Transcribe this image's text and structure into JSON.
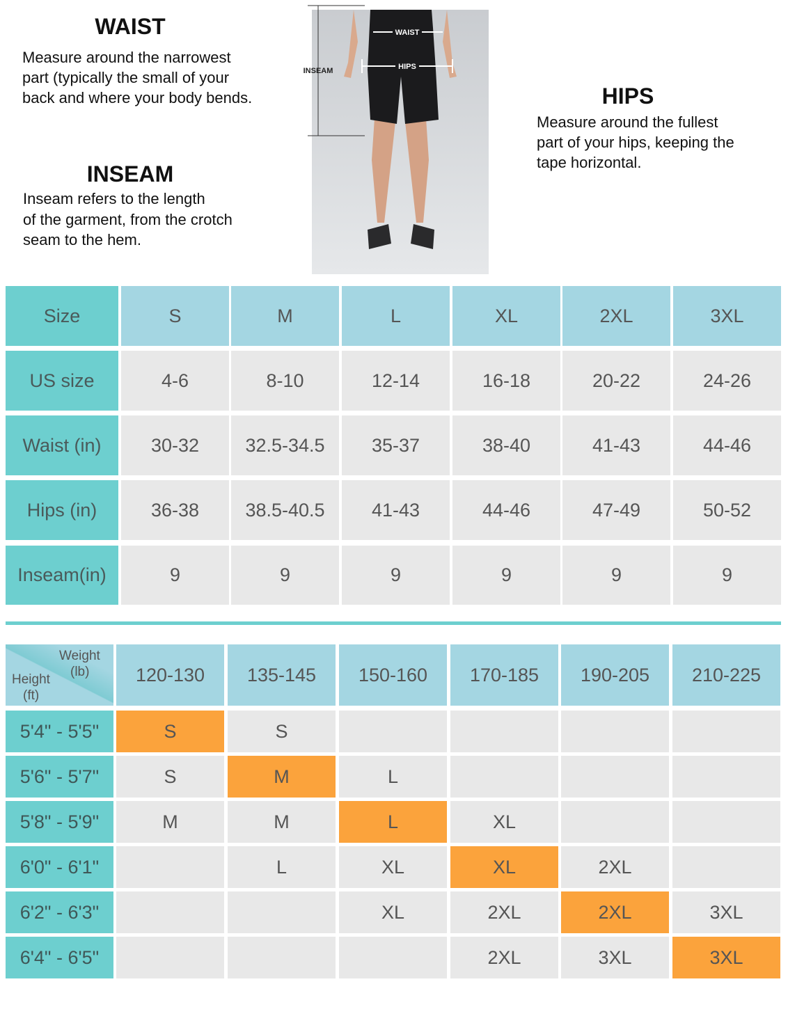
{
  "waist": {
    "title": "WAIST",
    "lines": [
      "Measure around the narrowest",
      "part (typically the small of your",
      "back and where your body bends."
    ]
  },
  "inseam": {
    "title": "INSEAM",
    "lines": [
      "Inseam refers to the length",
      "of the garment, from the crotch",
      "seam to the hem."
    ]
  },
  "hips": {
    "title": "HIPS",
    "lines": [
      "Measure around the fullest",
      "part of your hips, keeping the",
      "tape horizontal."
    ]
  },
  "figure": {
    "waist_label": "WAIST",
    "hips_label": "HIPS",
    "inseam_label": "INSEAM"
  },
  "size_table": {
    "header": [
      "Size",
      "S",
      "M",
      "L",
      "XL",
      "2XL",
      "3XL"
    ],
    "rows": [
      [
        "US size",
        "4-6",
        "8-10",
        "12-14",
        "16-18",
        "20-22",
        "24-26"
      ],
      [
        "Waist (in)",
        "30-32",
        "32.5-34.5",
        "35-37",
        "38-40",
        "41-43",
        "44-46"
      ],
      [
        "Hips (in)",
        "36-38",
        "38.5-40.5",
        "41-43",
        "44-46",
        "47-49",
        "50-52"
      ],
      [
        "Inseam(in)",
        "9",
        "9",
        "9",
        "9",
        "9",
        "9"
      ]
    ]
  },
  "fit_table": {
    "corner": {
      "weight": "Weight",
      "weight_unit": "(lb)",
      "height": "Height",
      "height_unit": "(ft)"
    },
    "columns": [
      "120-130",
      "135-145",
      "150-160",
      "170-185",
      "190-205",
      "210-225"
    ],
    "highlight_color": "#fba33c",
    "rows": [
      {
        "label": "5'4\" - 5'5\"",
        "cells": [
          "S",
          "S",
          null,
          null,
          null,
          null
        ],
        "highlight": 0
      },
      {
        "label": "5'6\" - 5'7\"",
        "cells": [
          "S",
          "M",
          "L",
          null,
          null,
          null
        ],
        "highlight": 1
      },
      {
        "label": "5'8\" - 5'9\"",
        "cells": [
          "M",
          "M",
          "L",
          "XL",
          null,
          null
        ],
        "highlight": 2
      },
      {
        "label": "6'0\" - 6'1\"",
        "cells": [
          null,
          "L",
          "XL",
          "XL",
          "2XL",
          null
        ],
        "highlight": 3
      },
      {
        "label": "6'2\" - 6'3\"",
        "cells": [
          null,
          null,
          "XL",
          "2XL",
          "2XL",
          "3XL"
        ],
        "highlight": 4
      },
      {
        "label": "6'4\" - 6'5\"",
        "cells": [
          null,
          null,
          null,
          "2XL",
          "3XL",
          "3XL"
        ],
        "highlight": 5
      }
    ]
  }
}
